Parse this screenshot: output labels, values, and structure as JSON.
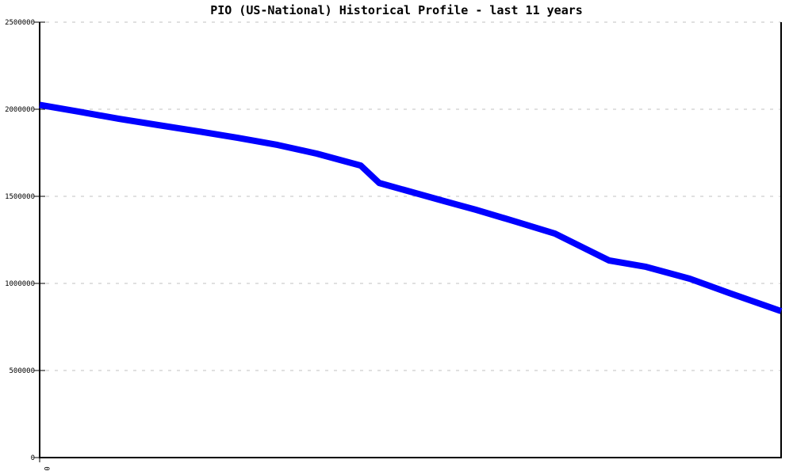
{
  "chart_data": {
    "type": "line",
    "title": "PIO (US-National) Historical Profile - last 11 years",
    "xlabel": "",
    "ylabel": "",
    "x_tick_labels": [
      "0"
    ],
    "y_ticks": [
      0,
      500000,
      1000000,
      1500000,
      2000000,
      2500000
    ],
    "ylim": [
      0,
      2500000
    ],
    "grid": "dashed-horizontal",
    "legend": "none",
    "line_color": "#0000ff",
    "line_width": 8,
    "series": [
      {
        "name": "PIO (US-National)",
        "color": "#0000ff",
        "x_frac": [
          0.0,
          0.053,
          0.107,
          0.16,
          0.214,
          0.267,
          0.321,
          0.374,
          0.433,
          0.458,
          0.503,
          0.545,
          0.588,
          0.642,
          0.695,
          0.738,
          0.768,
          0.818,
          0.877,
          0.93,
          1.0
        ],
        "values": [
          2025000,
          1986000,
          1945000,
          1909000,
          1873000,
          1836000,
          1795000,
          1745000,
          1677000,
          1577000,
          1523000,
          1473000,
          1423000,
          1355000,
          1286000,
          1195000,
          1132000,
          1095000,
          1027000,
          945000,
          841000
        ]
      }
    ]
  }
}
